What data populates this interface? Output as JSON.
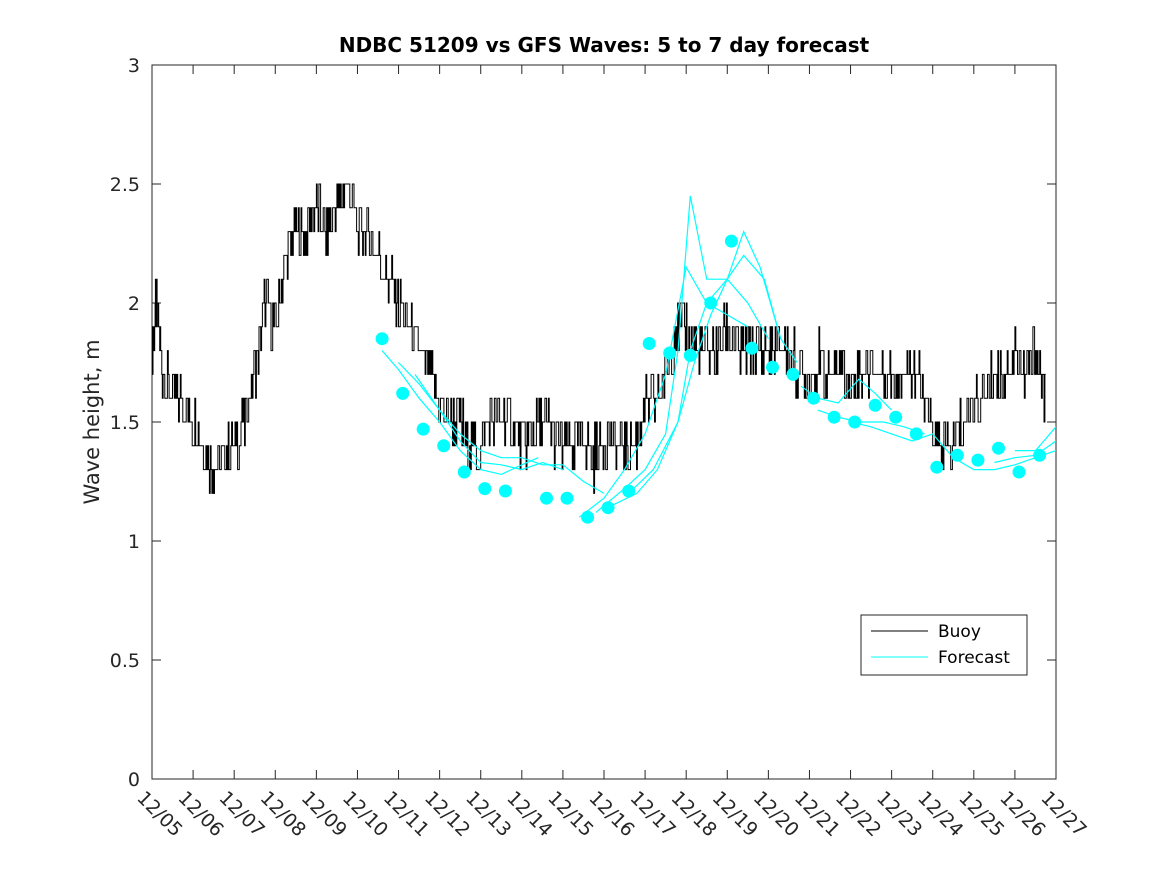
{
  "chart_data": {
    "type": "line",
    "title": "NDBC 51209 vs GFS Waves: 5 to 7 day forecast",
    "xlabel": "",
    "ylabel": "Wave height, m",
    "xlim": [
      0,
      22
    ],
    "ylim": [
      0,
      3
    ],
    "y_ticks": [
      "0",
      "0.5",
      "1",
      "1.5",
      "2",
      "2.5",
      "3"
    ],
    "x_ticks": [
      "12/05",
      "12/06",
      "12/07",
      "12/08",
      "12/09",
      "12/10",
      "12/11",
      "12/12",
      "12/13",
      "12/14",
      "12/15",
      "12/16",
      "12/17",
      "12/18",
      "12/19",
      "12/20",
      "12/21",
      "12/22",
      "12/23",
      "12/24",
      "12/25",
      "12/26",
      "12/27"
    ],
    "legend": {
      "position": "bottom-right",
      "entries": [
        "Buoy",
        "Forecast"
      ]
    },
    "colors": {
      "buoy": "#000000",
      "forecast": "#00ffff"
    },
    "buoy": {
      "name": "Buoy",
      "x": [
        0,
        0.1,
        0.25,
        0.5,
        0.75,
        1,
        1.25,
        1.5,
        1.75,
        2,
        2.25,
        2.5,
        2.75,
        3,
        3.25,
        3.5,
        3.75,
        4,
        4.25,
        4.5,
        4.75,
        5,
        5.25,
        5.5,
        5.75,
        6,
        6.25,
        6.5,
        6.75,
        7,
        7.25,
        7.5,
        7.75,
        8,
        8.25,
        8.5,
        8.75,
        9,
        9.25,
        9.5,
        9.75,
        10,
        10.25,
        10.5,
        10.75,
        11,
        11.25,
        11.5,
        11.75,
        12,
        12.25,
        12.5,
        12.75,
        13,
        13.25,
        13.5,
        13.75,
        14,
        14.25,
        14.5,
        14.75,
        15,
        15.25,
        15.5,
        15.75,
        16,
        16.25,
        16.5,
        16.75,
        17,
        17.25,
        17.5,
        17.75,
        18,
        18.25,
        18.5,
        18.75,
        19,
        19.25,
        19.5,
        19.75,
        20,
        20.25,
        20.5,
        20.75,
        21,
        21.25,
        21.5,
        21.75
      ],
      "values": [
        1.8,
        2.0,
        1.7,
        1.6,
        1.6,
        1.5,
        1.4,
        1.3,
        1.35,
        1.4,
        1.5,
        1.7,
        2.0,
        1.9,
        2.2,
        2.3,
        2.3,
        2.4,
        2.3,
        2.4,
        2.5,
        2.3,
        2.3,
        2.2,
        2.1,
        2.0,
        1.9,
        1.8,
        1.7,
        1.6,
        1.5,
        1.5,
        1.4,
        1.4,
        1.5,
        1.5,
        1.5,
        1.4,
        1.45,
        1.5,
        1.45,
        1.4,
        1.4,
        1.45,
        1.35,
        1.45,
        1.4,
        1.4,
        1.4,
        1.55,
        1.6,
        1.7,
        1.9,
        1.9,
        1.8,
        1.8,
        1.8,
        1.9,
        1.8,
        1.8,
        1.8,
        1.8,
        1.8,
        1.8,
        1.7,
        1.7,
        1.75,
        1.7,
        1.75,
        1.65,
        1.7,
        1.75,
        1.7,
        1.7,
        1.7,
        1.75,
        1.6,
        1.45,
        1.4,
        1.4,
        1.5,
        1.6,
        1.6,
        1.7,
        1.7,
        1.8,
        1.7,
        1.8,
        1.6
      ]
    },
    "forecast_lines": [
      {
        "x": [
          5.6,
          6,
          6.5,
          7,
          7.5,
          8,
          8.5,
          9,
          9.4
        ],
        "values": [
          1.8,
          1.72,
          1.6,
          1.5,
          1.38,
          1.3,
          1.28,
          1.32,
          1.35
        ]
      },
      {
        "x": [
          6.0,
          6.5,
          7,
          7.5,
          8,
          8.5,
          9,
          9.5,
          10
        ],
        "values": [
          1.75,
          1.66,
          1.55,
          1.42,
          1.33,
          1.32,
          1.3,
          1.33,
          1.3
        ]
      },
      {
        "x": [
          6.4,
          7,
          7.5,
          8,
          8.5,
          9,
          9.5,
          10,
          10.5,
          11
        ],
        "values": [
          1.7,
          1.55,
          1.45,
          1.38,
          1.35,
          1.35,
          1.32,
          1.32,
          1.25,
          1.2
        ]
      },
      {
        "x": [
          10.4,
          11,
          11.5,
          12,
          12.5,
          13,
          13.5,
          14,
          14.5
        ],
        "values": [
          1.1,
          1.18,
          1.3,
          1.45,
          1.7,
          2.15,
          2.0,
          1.95,
          1.9
        ]
      },
      {
        "x": [
          10.8,
          11.5,
          12,
          12.5,
          12.8,
          13.1,
          13.5,
          14,
          14.5,
          15
        ],
        "values": [
          1.12,
          1.22,
          1.3,
          1.45,
          1.8,
          2.45,
          2.1,
          2.1,
          2.0,
          1.85
        ]
      },
      {
        "x": [
          11.2,
          11.8,
          12.3,
          12.8,
          13.1,
          13.5,
          14,
          14.4,
          14.8,
          15.3
        ],
        "values": [
          1.15,
          1.2,
          1.3,
          1.5,
          1.8,
          2.0,
          2.1,
          2.3,
          2.15,
          1.85
        ]
      },
      {
        "x": [
          11.6,
          12.2,
          12.8,
          13.2,
          13.6,
          14,
          14.4,
          14.9,
          15.3,
          15.7
        ],
        "values": [
          1.2,
          1.3,
          1.5,
          1.75,
          1.95,
          2.1,
          2.2,
          2.1,
          1.85,
          1.75
        ]
      },
      {
        "x": [
          15.8,
          16.2,
          16.7,
          17.2,
          17.6,
          18
        ],
        "values": [
          1.65,
          1.6,
          1.58,
          1.68,
          1.62,
          1.55
        ]
      },
      {
        "x": [
          16.2,
          16.7,
          17.2,
          17.8,
          18.3,
          18.8
        ],
        "values": [
          1.55,
          1.52,
          1.5,
          1.5,
          1.48,
          1.45
        ]
      },
      {
        "x": [
          17.0,
          17.5,
          18,
          18.5,
          19,
          19.5
        ],
        "values": [
          1.5,
          1.48,
          1.45,
          1.42,
          1.45,
          1.35
        ]
      },
      {
        "x": [
          19.5,
          20,
          20.5,
          21,
          21.5,
          22
        ],
        "values": [
          1.35,
          1.3,
          1.3,
          1.32,
          1.35,
          1.38
        ]
      },
      {
        "x": [
          20.5,
          21,
          21.5,
          22
        ],
        "values": [
          1.33,
          1.35,
          1.36,
          1.42
        ]
      },
      {
        "x": [
          21.0,
          21.5,
          22
        ],
        "values": [
          1.38,
          1.38,
          1.48
        ]
      }
    ],
    "forecast_points": {
      "x": [
        5.6,
        6.1,
        6.6,
        7.1,
        7.6,
        8.1,
        8.6,
        9.6,
        10.1,
        10.6,
        11.1,
        11.6,
        12.1,
        12.6,
        13.1,
        13.6,
        14.1,
        14.6,
        15.1,
        15.6,
        16.1,
        16.6,
        17.1,
        17.6,
        18.1,
        18.6,
        19.1,
        19.6,
        20.1,
        20.6,
        21.1,
        21.6
      ],
      "values": [
        1.85,
        1.62,
        1.47,
        1.4,
        1.29,
        1.22,
        1.21,
        1.18,
        1.18,
        1.1,
        1.14,
        1.21,
        1.83,
        1.79,
        1.78,
        2.0,
        2.26,
        1.81,
        1.73,
        1.7,
        1.6,
        1.52,
        1.5,
        1.57,
        1.52,
        1.45,
        1.31,
        1.36,
        1.34,
        1.39,
        1.29,
        1.36
      ]
    }
  }
}
